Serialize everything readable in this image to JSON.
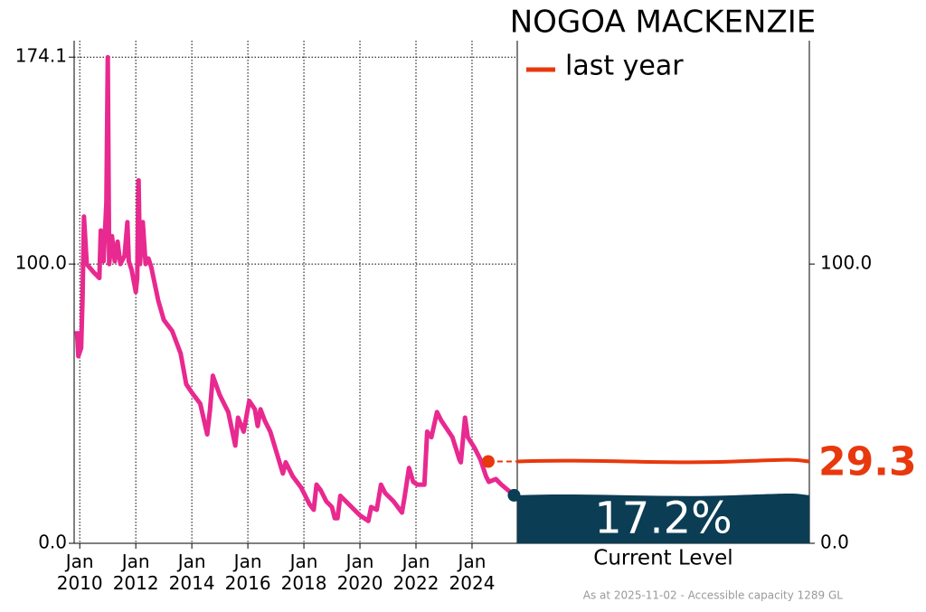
{
  "chart_data": {
    "type": "line",
    "title": "NOGOA MACKENZIE",
    "color": "#e8298f",
    "x": [
      2009.9,
      2009.95,
      2010.05,
      2010.1,
      2010.15,
      2010.25,
      2010.5,
      2010.7,
      2010.75,
      2010.85,
      2010.95,
      2011.0,
      2011.05,
      2011.15,
      2011.25,
      2011.35,
      2011.45,
      2011.6,
      2011.7,
      2011.75,
      2011.85,
      2012.0,
      2012.05,
      2012.1,
      2012.15,
      2012.25,
      2012.35,
      2012.45,
      2012.55,
      2012.8,
      2013.0,
      2013.3,
      2013.6,
      2013.8,
      2014.0,
      2014.3,
      2014.55,
      2014.65,
      2014.75,
      2015.0,
      2015.3,
      2015.55,
      2015.65,
      2015.85,
      2016.05,
      2016.25,
      2016.35,
      2016.45,
      2016.6,
      2016.8,
      2017.1,
      2017.25,
      2017.35,
      2017.6,
      2017.9,
      2018.2,
      2018.35,
      2018.45,
      2018.6,
      2018.8,
      2019.0,
      2019.1,
      2019.2,
      2019.3,
      2019.5,
      2019.8,
      2020.0,
      2020.3,
      2020.4,
      2020.6,
      2020.75,
      2020.9,
      2021.2,
      2021.5,
      2021.6,
      2021.75,
      2021.9,
      2022.05,
      2022.3,
      2022.4,
      2022.55,
      2022.75,
      2022.9,
      2023.3,
      2023.55,
      2023.6,
      2023.75,
      2023.85,
      2024.1,
      2024.3,
      2024.5,
      2024.6,
      2024.85,
      2025.05,
      2025.5
    ],
    "values": [
      76,
      67,
      70,
      88,
      117,
      100,
      97,
      95,
      112,
      101,
      122,
      174.1,
      100,
      110,
      101,
      108,
      100,
      103,
      115,
      101,
      98,
      90,
      95,
      130,
      100,
      115,
      100,
      102,
      99,
      87,
      80,
      76,
      68,
      57,
      54,
      50,
      39,
      48,
      60,
      53,
      47,
      35,
      45,
      40,
      51,
      48,
      42,
      48,
      44,
      40,
      30,
      25,
      29,
      24,
      20,
      14,
      12,
      21,
      19,
      15,
      13,
      9,
      9,
      17,
      15,
      12,
      10,
      8,
      13,
      12,
      21,
      18,
      15,
      11,
      17,
      27,
      22,
      21,
      21,
      40,
      38,
      47,
      44,
      38,
      30,
      29,
      45,
      38,
      34,
      30,
      24,
      22,
      23,
      21,
      17.2
    ],
    "xlim": [
      2009.8,
      2025.55
    ],
    "xticks": [
      {
        "value": 2010,
        "label": "Jan\n2010"
      },
      {
        "value": 2012,
        "label": "Jan\n2012"
      },
      {
        "value": 2014,
        "label": "Jan\n2014"
      },
      {
        "value": 2016,
        "label": "Jan\n2016"
      },
      {
        "value": 2018,
        "label": "Jan\n2018"
      },
      {
        "value": 2020,
        "label": "Jan\n2020"
      },
      {
        "value": 2022,
        "label": "Jan\n2022"
      },
      {
        "value": 2024,
        "label": "Jan\n2024"
      }
    ],
    "ylim": [
      0,
      180
    ],
    "yticks": [
      {
        "value": 0,
        "label": "0.0"
      },
      {
        "value": 100,
        "label": "100.0"
      },
      {
        "value": 174.1,
        "label": "174.1"
      }
    ],
    "y2lim": [
      0,
      180
    ],
    "y2ticks": [
      {
        "value": 0,
        "label": "0.0"
      },
      {
        "value": 100,
        "label": "100.0"
      }
    ],
    "grid": true,
    "legend": {
      "name": "last year",
      "color": "#e8380d"
    },
    "last_year": {
      "x": 2024.58,
      "value": 29.3
    },
    "current": {
      "value": 17.2,
      "label": "17.2%",
      "name": "Current Level",
      "color": "#0b3d55"
    },
    "footnote": "As at 2025-11-02 - Accessible capacity 1289 GL"
  }
}
